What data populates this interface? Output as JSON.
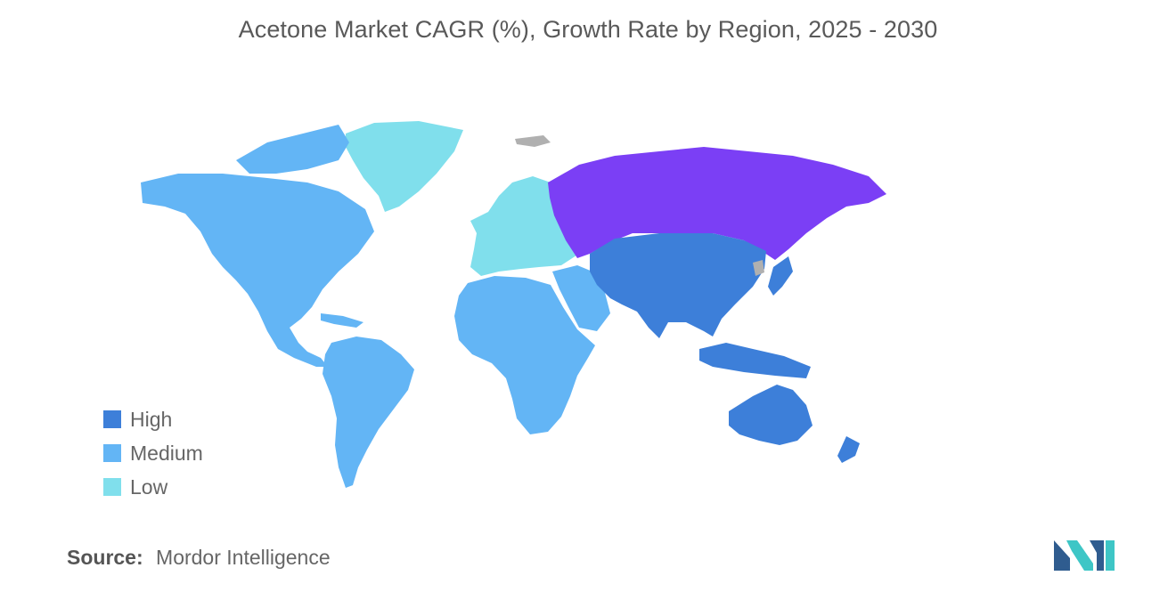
{
  "title": "Acetone Market CAGR (%), Growth Rate by Region, 2025 - 2030",
  "legend": [
    {
      "label": "High",
      "color": "#3d7fd9"
    },
    {
      "label": "Medium",
      "color": "#63b5f5"
    },
    {
      "label": "Low",
      "color": "#80dfec"
    }
  ],
  "regions": {
    "north_america": {
      "category": "Medium",
      "color": "#63b5f5"
    },
    "south_america": {
      "category": "Medium",
      "color": "#63b5f5"
    },
    "africa": {
      "category": "Medium",
      "color": "#63b5f5"
    },
    "middle_east": {
      "category": "Medium",
      "color": "#63b5f5"
    },
    "greenland": {
      "category": "Low",
      "color": "#80dfec"
    },
    "europe": {
      "category": "Low",
      "color": "#80dfec"
    },
    "asia_pacific": {
      "category": "High",
      "color": "#3d7fd9"
    },
    "australia": {
      "category": "High",
      "color": "#3d7fd9"
    },
    "russia": {
      "category": "",
      "color": "#7b3ff5"
    },
    "no_data": {
      "category": "",
      "color": "#b0b0b0"
    }
  },
  "source": {
    "label": "Source:",
    "value": "Mordor Intelligence"
  },
  "logo_colors": {
    "primary": "#2f5c8f",
    "secondary": "#3ec6c6"
  }
}
